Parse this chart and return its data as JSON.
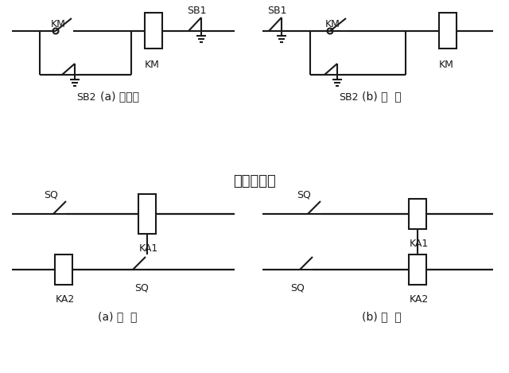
{
  "title": "电器连接图",
  "label_a1": "(a) 不合理",
  "label_b1": "(b) 合  理",
  "label_a2": "(a) 错  误",
  "label_b2": "(b) 正  确",
  "bg_color": "#ffffff",
  "line_color": "#1a1a1a",
  "lw": 1.5
}
